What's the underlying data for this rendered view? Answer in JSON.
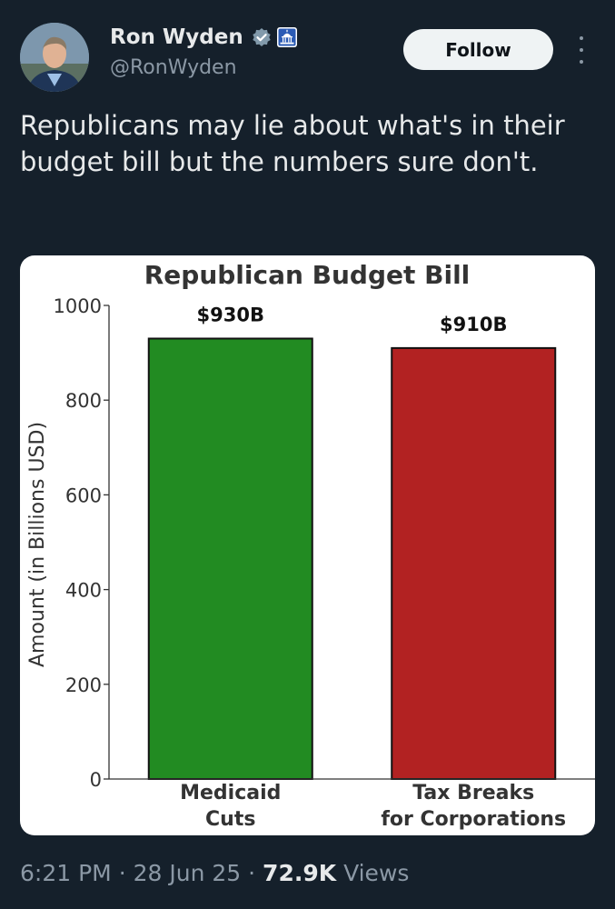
{
  "tweet": {
    "author_name": "Ron Wyden",
    "handle": "@RonWyden",
    "follow_label": "Follow",
    "text": "Republicans may lie about what's in their budget bill but the numbers sure don't.",
    "time": "6:21 PM",
    "date": "28 Jun 25",
    "views_count": "72.9K",
    "views_label": "Views",
    "separator": "·"
  },
  "icons": {
    "verified": "verified-badge-icon",
    "government": "capitol-building-icon",
    "more": "more-options-icon"
  },
  "colors": {
    "background": "#15202b",
    "follow_button": "#eff3f4",
    "medicaid_bar": "#228b22",
    "tax_bar": "#b22222",
    "verified_badge": "#829aab"
  },
  "chart_data": {
    "type": "bar",
    "title": "Republican Budget Bill",
    "ylabel": "Amount (in Billions USD)",
    "xlabel": "",
    "ylim": [
      0,
      1000
    ],
    "yticks": [
      0,
      200,
      400,
      600,
      800,
      1000
    ],
    "categories": [
      [
        "Medicaid",
        "Cuts"
      ],
      [
        "Tax Breaks",
        "for Corporations"
      ]
    ],
    "values": [
      930,
      910
    ],
    "data_labels": [
      "$930B",
      "$910B"
    ],
    "colors": [
      "#228b22",
      "#b22222"
    ],
    "grid": false
  }
}
